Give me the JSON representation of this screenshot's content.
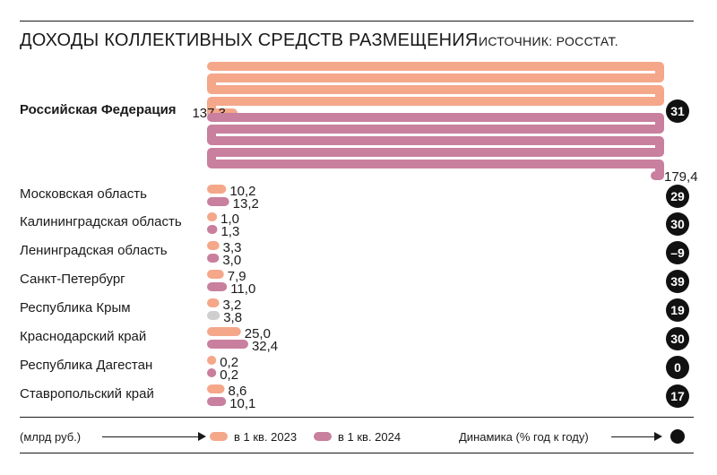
{
  "header": {
    "title": "ДОХОДЫ КОЛЛЕКТИВНЫХ СРЕДСТВ РАЗМЕЩЕНИЯ",
    "source": "ИСТОЧНИК: РОССТАТ."
  },
  "legend": {
    "unit": "(млрд руб.)",
    "series_2023": "в 1 кв. 2023",
    "series_2024": "в 1 кв. 2024",
    "dynamics": "Динамика (% год к году)"
  },
  "colors": {
    "series_2023": "#f5a78a",
    "series_2024": "#c97f9e",
    "highlight_gray": "#cfcfcf",
    "badge": "#111111"
  },
  "chart_data": {
    "type": "bar",
    "title": "ДОХОДЫ КОЛЛЕКТИВНЫХ СРЕДСТВ РАЗМЕЩЕНИЯ",
    "categories": [
      "Российская Федерация",
      "Московская область",
      "Калининградская область",
      "Ленинградская область",
      "Санкт-Петербург",
      "Республика Крым",
      "Краснодарский край",
      "Республика Дагестан",
      "Ставропольский край"
    ],
    "series": [
      {
        "name": "в 1 кв. 2023",
        "values": [
          137.3,
          10.2,
          1.0,
          3.3,
          7.9,
          3.2,
          25.0,
          0.2,
          8.6
        ],
        "labels": [
          "137,3",
          "10,2",
          "1,0",
          "3,3",
          "7,9",
          "3,2",
          "25,0",
          "0,2",
          "8,6"
        ]
      },
      {
        "name": "в 1 кв. 2024",
        "values": [
          179.4,
          13.2,
          1.3,
          3.0,
          11.0,
          3.8,
          32.4,
          0.2,
          10.1
        ],
        "labels": [
          "179,4",
          "13,2",
          "1,3",
          "3,0",
          "11,0",
          "3,8",
          "32,4",
          "0,2",
          "10,1"
        ]
      }
    ],
    "dynamics": [
      "31",
      "29",
      "30",
      "–9",
      "39",
      "19",
      "30",
      "0",
      "17"
    ],
    "gray_bars": [
      [
        5,
        1
      ]
    ],
    "bold_categories": [
      0
    ]
  }
}
